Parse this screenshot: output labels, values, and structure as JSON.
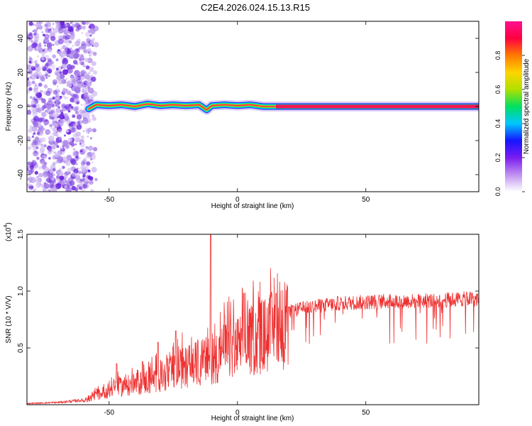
{
  "page_title": "C2E4.2026.024.15.13.R15",
  "chart_data": [
    {
      "type": "heatmap",
      "name": "spectrogram",
      "xlabel": "Height of straight line (km)",
      "ylabel": "Frequency (Hz)",
      "xlim": [
        -82,
        94
      ],
      "ylim": [
        -50,
        50
      ],
      "x_ticks": [
        "-50",
        "0",
        "50"
      ],
      "x_tick_values": [
        -50,
        0,
        50
      ],
      "y_ticks": [
        "-40",
        "-20",
        "0",
        "20",
        "40"
      ],
      "y_tick_values": [
        -40,
        -20,
        0,
        20,
        40
      ],
      "noise_region_x": [
        -82,
        -57
      ],
      "ridge": {
        "description": "narrow band near 0 Hz",
        "points": [
          [
            -58,
            -1.5
          ],
          [
            -55,
            1
          ],
          [
            -50,
            0.5
          ],
          [
            -45,
            1
          ],
          [
            -40,
            0
          ],
          [
            -35,
            1.5
          ],
          [
            -30,
            0.5
          ],
          [
            -25,
            1
          ],
          [
            -20,
            0.5
          ],
          [
            -15,
            1
          ],
          [
            -12,
            -2
          ],
          [
            -10,
            0.5
          ],
          [
            -5,
            1
          ],
          [
            0,
            0.5
          ],
          [
            5,
            1
          ],
          [
            10,
            0
          ],
          [
            15,
            0
          ],
          [
            94,
            0
          ]
        ]
      },
      "colorbar": {
        "label": "Normalized spectral amplitude",
        "ticks": [
          "0.0",
          "0.2",
          "0.4",
          "0.6",
          "0.8"
        ],
        "tick_values": [
          0.0,
          0.2,
          0.4,
          0.6,
          0.8
        ],
        "range": [
          0,
          1
        ],
        "colors": [
          "#ffffff",
          "#c090f0",
          "#7a1cf0",
          "#1515ff",
          "#00c8ff",
          "#00e060",
          "#b0e000",
          "#ffd400",
          "#ff7a00",
          "#ff0040",
          "#ff1090"
        ]
      }
    },
    {
      "type": "line",
      "name": "snr",
      "xlabel": "Height of straight line (km)",
      "ylabel": "SNR (10 * V/V)",
      "y_scale_label": "(x10",
      "y_scale_exp": "4",
      "y_scale_close": ")",
      "xlim": [
        -82,
        94
      ],
      "ylim": [
        0,
        1.5
      ],
      "x_ticks": [
        "-50",
        "0",
        "50"
      ],
      "x_tick_values": [
        -50,
        0,
        50
      ],
      "y_ticks": [
        "0.5",
        "1.0",
        "1.5"
      ],
      "y_tick_values": [
        0.5,
        1.0,
        1.5
      ],
      "color": "#ee3030",
      "envelope_x": [
        -82,
        -70,
        -60,
        -55,
        -50,
        -45,
        -40,
        -35,
        -30,
        -25,
        -20,
        -15,
        -10,
        -5,
        0,
        5,
        10,
        15,
        20,
        25,
        30,
        40,
        50,
        60,
        70,
        80,
        90,
        94
      ],
      "envelope_y": [
        0.01,
        0.02,
        0.04,
        0.1,
        0.16,
        0.2,
        0.22,
        0.26,
        0.3,
        0.36,
        0.42,
        0.46,
        0.5,
        0.58,
        0.63,
        0.7,
        0.76,
        0.82,
        0.86,
        0.89,
        0.91,
        0.94,
        0.95,
        0.96,
        0.96,
        0.97,
        0.98,
        0.98
      ],
      "peaks": [
        {
          "x": -10.5,
          "y": 1.5
        },
        {
          "x": -5,
          "y": 0.78
        },
        {
          "x": 2.5,
          "y": 0.98
        },
        {
          "x": -24,
          "y": 0.65
        },
        {
          "x": -31,
          "y": 0.55
        },
        {
          "x": -37,
          "y": 0.38
        },
        {
          "x": -47,
          "y": 0.36
        },
        {
          "x": 15,
          "y": 0.98
        },
        {
          "x": 20,
          "y": 0.86
        }
      ]
    }
  ]
}
